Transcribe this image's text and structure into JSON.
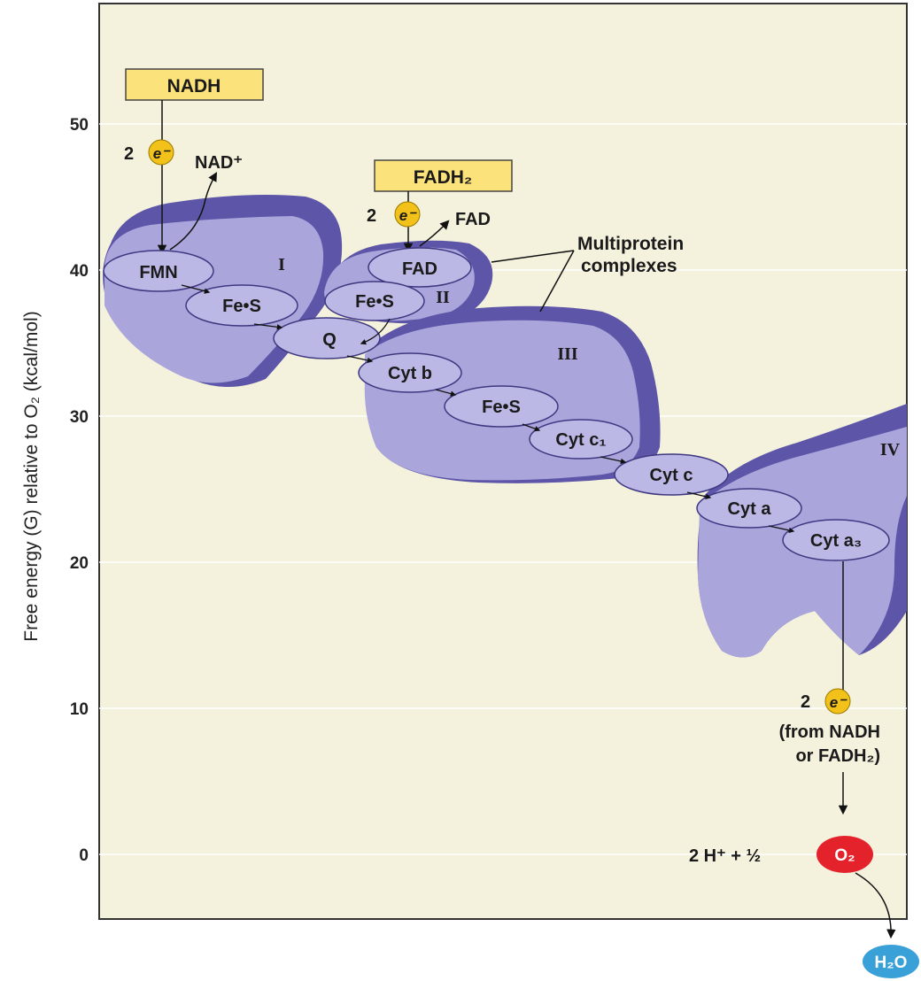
{
  "y_axis": {
    "label": "Free energy (G) relative to O₂ (kcal/mol)",
    "ticks": [
      "50",
      "40",
      "30",
      "20",
      "10",
      "0"
    ]
  },
  "inputs": {
    "nadh": "NADH",
    "fadh2": "FADH₂",
    "two_electrons_1": "2",
    "two_electrons_2": "2",
    "two_electrons_3": "2",
    "electron_symbol": "e⁻",
    "nad_plus": "NAD⁺",
    "fad_out": "FAD"
  },
  "complexes": {
    "I": "I",
    "II": "II",
    "III": "III",
    "IV": "IV",
    "callout": [
      "Multiprotein",
      "complexes"
    ]
  },
  "carriers": {
    "fmn": "FMN",
    "fes_1": "Fe•S",
    "fad": "FAD",
    "fes_2": "Fe•S",
    "q": "Q",
    "cyt_b": "Cyt b",
    "fes_3": "Fe•S",
    "cyt_c1": "Cyt c₁",
    "cyt_c": "Cyt c",
    "cyt_a": "Cyt a",
    "cyt_a3": "Cyt a₃"
  },
  "final": {
    "source_line1": "(from NADH",
    "source_line2": "or FADH₂)",
    "protons": "2 H⁺ + ½",
    "oxygen": "O₂",
    "water": "H₂O"
  },
  "colors": {
    "panel": "#f4f1dd",
    "protein_fill": "#aaa6dc",
    "protein_dark": "#5c55a8",
    "carrier_fill": "#bcb8e6",
    "input_box": "#fce27a",
    "electron": "#f2c21b",
    "oxygen": "#e4222b",
    "water": "#3aa0d8"
  }
}
